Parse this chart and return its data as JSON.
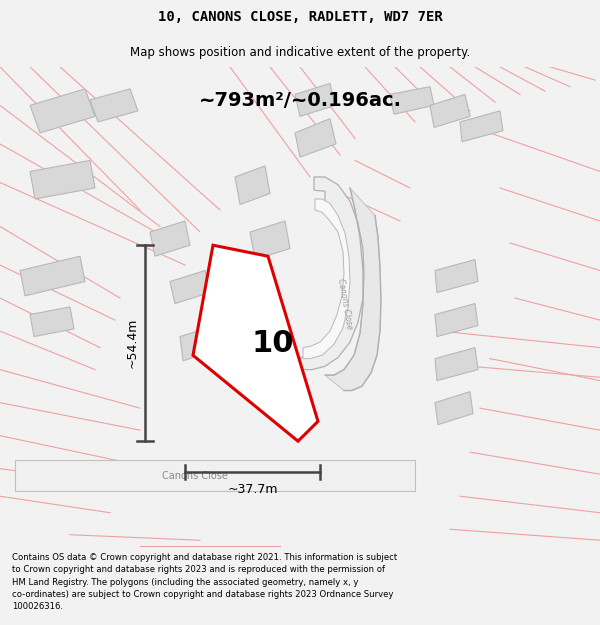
{
  "title_line1": "10, CANONS CLOSE, RADLETT, WD7 7ER",
  "title_line2": "Map shows position and indicative extent of the property.",
  "area_text": "~793m²/~0.196ac.",
  "width_label": "~37.7m",
  "height_label": "~54.4m",
  "property_number": "10",
  "road_label_diagonal": "Canons Close",
  "road_label_bottom": "Canons Close",
  "footer_text": "Contains OS data © Crown copyright and database right 2021. This information is subject to Crown copyright and database rights 2023 and is reproduced with the permission of HM Land Registry. The polygons (including the associated geometry, namely x, y co-ordinates) are subject to Crown copyright and database rights 2023 Ordnance Survey 100026316.",
  "bg_color": "#f2f2f2",
  "map_bg": "#ffffff",
  "plot_edge_color": "#dd0000",
  "pink_color": "#f0a0a0",
  "building_fill": "#d8d8d8",
  "building_edge": "#b8b8b8",
  "road_gray": "#c8c8c8",
  "dim_color": "#444444",
  "text_color": "#000000",
  "road_text_color": "#888888",
  "title_font": "monospace",
  "subtitle_font": "sans-serif"
}
